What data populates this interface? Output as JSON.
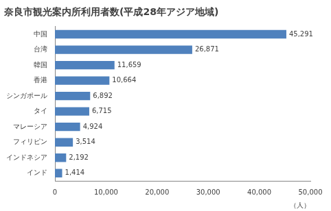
{
  "chart_data": {
    "type": "bar",
    "title": "奈良市観光案内所利用者数(平成28年アジア地域)",
    "orientation": "horizontal",
    "categories": [
      "中国",
      "台湾",
      "韓国",
      "香港",
      "シンガポール",
      "タイ",
      "マレーシア",
      "フィリピン",
      "インドネシア",
      "インド"
    ],
    "values": [
      45291,
      26871,
      11659,
      10664,
      6892,
      6715,
      4924,
      3514,
      2192,
      1414
    ],
    "value_labels": [
      "45,291",
      "26,871",
      "11,659",
      "10,664",
      "6,892",
      "6,715",
      "4,924",
      "3,514",
      "2,192",
      "1,414"
    ],
    "data_labels": true,
    "color": "#4f81bd",
    "xlabel": "（人）",
    "xlim": [
      0,
      50000
    ],
    "xticks": [
      0,
      {
        "value": 10000,
        "label": "10,000"
      },
      {
        "value": 20000,
        "label": "20,000"
      },
      {
        "value": 30000,
        "label": "30,000"
      },
      {
        "value": 40000,
        "label": "40,000"
      },
      {
        "value": 50000,
        "label": "50,000"
      }
    ],
    "grid": false
  }
}
